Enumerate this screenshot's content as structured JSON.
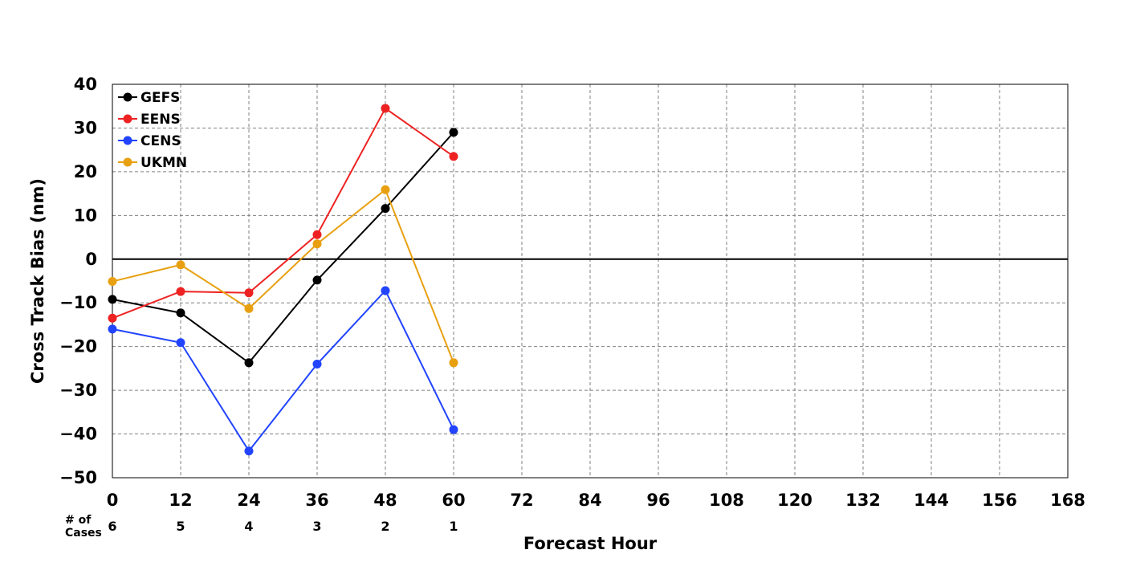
{
  "chart_data": {
    "type": "line",
    "xlabel": "Forecast Hour",
    "ylabel": "Cross Track Bias (nm)",
    "xlim": [
      0,
      168
    ],
    "ylim": [
      -50,
      40
    ],
    "x_ticks": [
      0,
      12,
      24,
      36,
      48,
      60,
      72,
      84,
      96,
      108,
      120,
      132,
      144,
      156,
      168
    ],
    "y_ticks": [
      40,
      30,
      20,
      10,
      0,
      -10,
      -20,
      -30,
      -40,
      -50
    ],
    "grid": true,
    "legend_position": "top-left",
    "x": [
      0,
      12,
      24,
      36,
      48,
      60
    ],
    "series": [
      {
        "name": "GEFS",
        "color": "#000000",
        "values": [
          -9.2,
          -12.3,
          -23.7,
          -4.8,
          11.6,
          29.0
        ]
      },
      {
        "name": "EENS",
        "color": "#ee2222",
        "values": [
          -13.5,
          -7.4,
          -7.7,
          5.6,
          34.5,
          23.5
        ]
      },
      {
        "name": "CENS",
        "color": "#2244ff",
        "values": [
          -16.0,
          -19.1,
          -43.9,
          -24.0,
          -7.2,
          -39.0
        ]
      },
      {
        "name": "UKMN",
        "color": "#e8a010",
        "values": [
          -5.1,
          -1.3,
          -11.3,
          3.5,
          15.9,
          -23.7
        ]
      }
    ],
    "cases": {
      "label_line1": "# of",
      "label_line2": "Cases",
      "x": [
        0,
        12,
        24,
        36,
        48,
        60
      ],
      "values": [
        "6",
        "5",
        "4",
        "3",
        "2",
        "1"
      ]
    }
  }
}
